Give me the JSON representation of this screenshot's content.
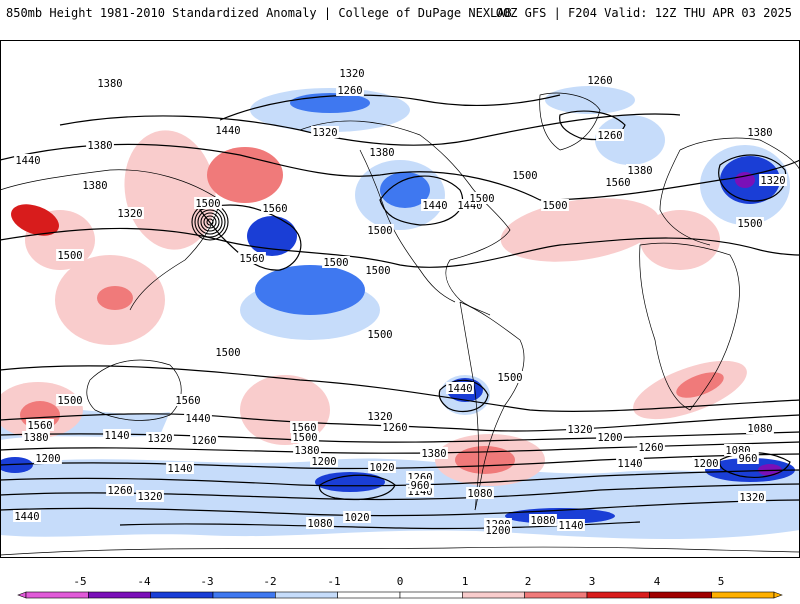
{
  "header": {
    "left": "850mb Height 1981-2010 Standardized Anomaly | College of DuPage NEXLAB",
    "right": "00Z GFS | F204 Valid: 12Z THU APR 03 2025"
  },
  "colors": {
    "n5": "#e05ad8",
    "n4": "#7a10b8",
    "n3": "#1a3ed6",
    "n2": "#3f78f0",
    "n1": "#c6dcfa",
    "p1": "#f9cccc",
    "p2": "#f07a7a",
    "p3": "#d81c1c",
    "p4": "#a00000",
    "p5": "#ffb000",
    "land": "#ffffff",
    "coast": "#000000",
    "contour": "#000000"
  },
  "colorbar": {
    "ticks": [
      "-5",
      "-4",
      "-3",
      "-2",
      "-1",
      "0",
      "1",
      "2",
      "3",
      "4",
      "5"
    ]
  },
  "map": {
    "contour_labels": [
      "1380",
      "1320",
      "1260",
      "1440",
      "1500",
      "1560",
      "1380",
      "1440",
      "1500",
      "1320",
      "1380",
      "1260",
      "1380",
      "1320",
      "1440",
      "1500",
      "1440",
      "1500",
      "1500",
      "1500",
      "1500",
      "1560",
      "1500",
      "1380",
      "1320",
      "1380",
      "1260",
      "1500",
      "1500",
      "1560",
      "1500",
      "1560",
      "1500",
      "1440",
      "1500",
      "1440",
      "1560",
      "1380",
      "1140",
      "1320",
      "1260",
      "1560",
      "1500",
      "1380",
      "1200",
      "1320",
      "1260",
      "1140",
      "1020",
      "1380",
      "1200",
      "1260",
      "1140",
      "1080",
      "960",
      "1200",
      "1440",
      "1320",
      "1260",
      "1320",
      "1080",
      "1200",
      "1140",
      "1080",
      "1020",
      "1200",
      "1080",
      "1140",
      "1200",
      "960",
      "1320",
      "1260",
      "1080"
    ],
    "low_centers": [
      {
        "name": "north-pacific-low"
      },
      {
        "name": "hudson-bay-low"
      },
      {
        "name": "ural-low"
      },
      {
        "name": "southern-ocean-low"
      }
    ]
  }
}
